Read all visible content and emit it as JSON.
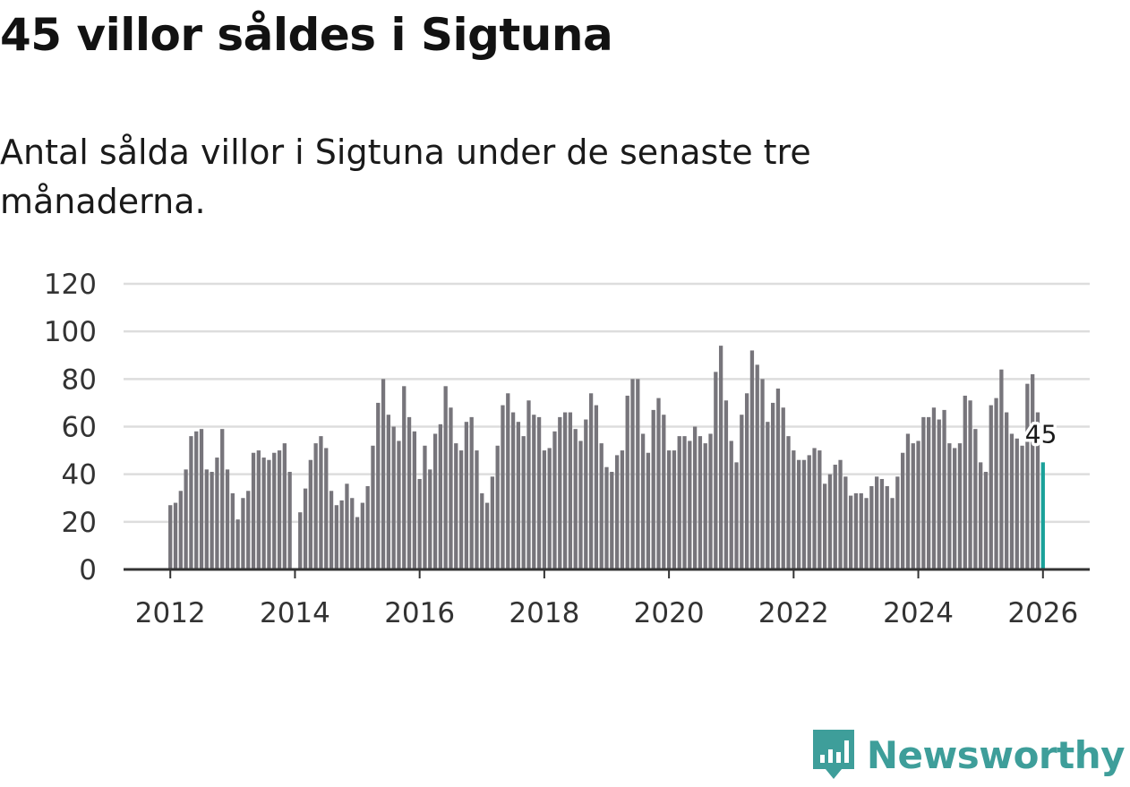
{
  "title": "45 villor såldes i Sigtuna",
  "subtitle": "Antal sålda villor i Sigtuna under de senaste tre månaderna.",
  "brand": {
    "name": "Newsworthy",
    "icon": "newsworthy-logo-icon",
    "color": "#3e9e9a"
  },
  "colors": {
    "bar": "#77757b",
    "highlight": "#1aa19a",
    "grid": "#dddddd",
    "axis": "#333333"
  },
  "chart_data": {
    "type": "bar",
    "title": "45 villor såldes i Sigtuna",
    "xlabel": "",
    "ylabel": "",
    "ylim": [
      0,
      120
    ],
    "y_ticks": [
      "0",
      "20",
      "40",
      "60",
      "80",
      "100",
      "120"
    ],
    "x_ticks": [
      "2012",
      "2014",
      "2016",
      "2018",
      "2020",
      "2022",
      "2024",
      "2026"
    ],
    "x_tick_values": [
      2012,
      2014,
      2016,
      2018,
      2020,
      2022,
      2024,
      2026
    ],
    "x_range": [
      2011.25,
      2026.75
    ],
    "series_start_year": 2012,
    "series_start_month": 1,
    "interval": "month",
    "values": [
      27,
      28,
      33,
      42,
      56,
      58,
      59,
      42,
      41,
      47,
      59,
      42,
      32,
      21,
      30,
      33,
      49,
      50,
      47,
      46,
      49,
      50,
      53,
      41,
      null,
      24,
      34,
      46,
      53,
      56,
      51,
      33,
      27,
      29,
      36,
      30,
      22,
      28,
      35,
      52,
      70,
      80,
      65,
      60,
      54,
      77,
      64,
      58,
      38,
      52,
      42,
      57,
      61,
      77,
      68,
      53,
      50,
      62,
      64,
      50,
      32,
      28,
      39,
      52,
      69,
      74,
      66,
      62,
      56,
      71,
      65,
      64,
      50,
      51,
      58,
      64,
      66,
      66,
      59,
      54,
      63,
      74,
      69,
      53,
      43,
      41,
      48,
      50,
      73,
      80,
      80,
      57,
      49,
      67,
      72,
      65,
      50,
      50,
      56,
      56,
      54,
      60,
      56,
      53,
      57,
      83,
      94,
      71,
      54,
      45,
      65,
      74,
      92,
      86,
      80,
      62,
      70,
      76,
      68,
      56,
      50,
      46,
      46,
      48,
      51,
      50,
      36,
      40,
      44,
      46,
      39,
      31,
      32,
      32,
      30,
      35,
      39,
      38,
      35,
      30,
      39,
      49,
      57,
      53,
      54,
      64,
      64,
      68,
      63,
      67,
      53,
      51,
      53,
      73,
      71,
      59,
      45,
      41,
      69,
      72,
      84,
      66,
      57,
      55,
      52,
      78,
      82,
      66,
      45
    ],
    "highlight": {
      "label": "45",
      "value": 45,
      "index": 168
    }
  }
}
